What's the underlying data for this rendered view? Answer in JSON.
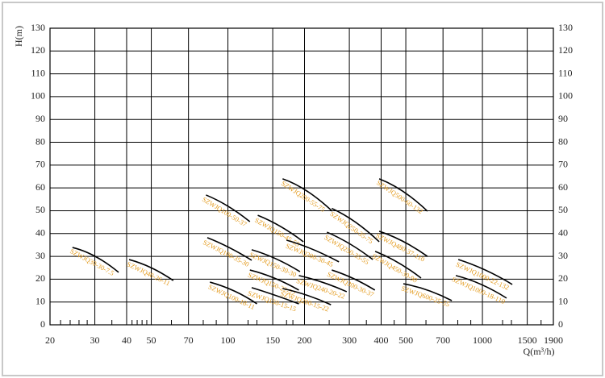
{
  "chart_data": {
    "type": "line",
    "x_label": "Q(m³/h)",
    "y_label": "H(m)",
    "xscale": "log",
    "grid": true,
    "line_color": "#000000",
    "label_color": "#e39a1c",
    "xlim": [
      20,
      1900
    ],
    "ylim": [
      0,
      130
    ],
    "xticks": [
      20,
      30,
      40,
      50,
      70,
      100,
      150,
      200,
      300,
      400,
      500,
      700,
      1000,
      1500,
      1900
    ],
    "xminorticks": [
      22,
      24,
      26,
      28,
      35,
      42,
      44,
      46,
      48,
      60,
      80,
      90,
      120,
      130,
      170,
      180,
      250,
      350,
      450,
      600,
      800,
      900,
      1200,
      1300,
      1700
    ],
    "yticks": [
      0,
      10,
      20,
      30,
      40,
      50,
      60,
      70,
      80,
      90,
      100,
      110,
      120,
      130
    ],
    "series": [
      {
        "name": "SZWJQ30-30-7.5",
        "x": [
          24.5,
          30.1,
          37.2
        ],
        "values": [
          33.9,
          30,
          23
        ]
      },
      {
        "name": "SZWJQ40-26-11",
        "x": [
          40.9,
          50,
          61
        ],
        "values": [
          28.6,
          25,
          19.4
        ]
      },
      {
        "name": "SZWJQ100-50-37",
        "x": [
          82,
          100,
          122
        ],
        "values": [
          56.9,
          52,
          45.2
        ]
      },
      {
        "name": "SZWJQ100-35-30",
        "x": [
          83,
          101,
          124
        ],
        "values": [
          38.2,
          33.9,
          28.3
        ]
      },
      {
        "name": "SZWJQ100-18-11",
        "x": [
          85,
          106,
          130
        ],
        "values": [
          18.7,
          14.8,
          9.2
        ]
      },
      {
        "name": "SZWJQ150-45-55",
        "x": [
          131,
          161,
          198
        ],
        "values": [
          48,
          43.1,
          36.4
        ]
      },
      {
        "name": "SZWJQ150-30-30",
        "x": [
          124,
          154,
          192
        ],
        "values": [
          32.9,
          29,
          23.3
        ]
      },
      {
        "name": "SZWJQ150-22-22",
        "x": [
          122,
          152,
          190
        ],
        "values": [
          24,
          20.5,
          15.2
        ]
      },
      {
        "name": "SZWJQ150-15-15",
        "x": [
          124,
          152,
          190
        ],
        "values": [
          16.3,
          13.1,
          9.2
        ]
      },
      {
        "name": "SZWJQ200-55-75",
        "x": [
          164,
          204,
          257
        ],
        "values": [
          64,
          58.7,
          49.8
        ]
      },
      {
        "name": "SZWJQ200-30-45",
        "x": [
          170,
          214,
          273
        ],
        "values": [
          37.1,
          33.2,
          27.6
        ]
      },
      {
        "name": "SZWJQ240-20-22",
        "x": [
          190,
          236,
          293
        ],
        "values": [
          21.6,
          18.6,
          14.5
        ]
      },
      {
        "name": "SZWJQ200-15-22",
        "x": [
          164,
          204,
          254
        ],
        "values": [
          15.9,
          13,
          8.8
        ]
      },
      {
        "name": "SZWJQ300-30-37",
        "x": [
          256,
          311,
          378
        ],
        "values": [
          24,
          20.3,
          15.2
        ]
      },
      {
        "name": "SZWJQ250-35-55",
        "x": [
          245,
          302,
          371
        ],
        "values": [
          40.6,
          35.4,
          28.6
        ]
      },
      {
        "name": "SZWJQ250-35-75",
        "x": [
          256,
          317,
          393
        ],
        "values": [
          51,
          45,
          36.4
        ]
      },
      {
        "name": "SZWJQ500-60-132",
        "x": [
          393,
          489,
          608
        ],
        "values": [
          64,
          58.4,
          49.8
        ]
      },
      {
        "name": "SZWJQ480-37-110",
        "x": [
          393,
          489,
          608
        ],
        "values": [
          41,
          36.5,
          30
        ]
      },
      {
        "name": "SZWJQ450-30-90",
        "x": [
          379,
          466,
          574
        ],
        "values": [
          32.2,
          27.3,
          20.5
        ]
      },
      {
        "name": "SZWJQ600-25-55",
        "x": [
          489,
          609,
          758
        ],
        "values": [
          18,
          15.2,
          10.6
        ]
      },
      {
        "name": "SZWJQ1000-22-132",
        "x": [
          804,
          1026,
          1310
        ],
        "values": [
          28.6,
          24,
          17.7
        ]
      },
      {
        "name": "SZWJQ1000-18-110",
        "x": [
          786,
          989,
          1244
        ],
        "values": [
          21.6,
          17.7,
          11.7
        ]
      }
    ]
  }
}
